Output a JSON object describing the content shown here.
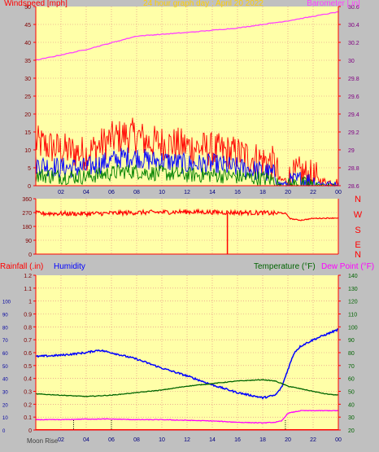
{
  "header": {
    "left_label": "Windspeed [mph]",
    "title": "24 hour graph day : April 20 2022",
    "right_label": "Barometer [.in]"
  },
  "colors": {
    "background": "#c0c0c0",
    "plot_bg": "#ffffa8",
    "grid": "#e08080",
    "frame": "#ff0000",
    "wind_gust": "#ff0000",
    "wind_avg": "#0000ff",
    "wind_low": "#008000",
    "barometer": "#ff40ff",
    "direction": "#ff0000",
    "rainfall": "#ff0000",
    "humidity": "#0000ff",
    "temperature": "#006400",
    "dew_point": "#ff00ff",
    "moon": "#000000"
  },
  "x_ticks": [
    "02",
    "04",
    "06",
    "08",
    "10",
    "12",
    "14",
    "16",
    "18",
    "20",
    "22",
    "00"
  ],
  "chart_data": [
    {
      "type": "line",
      "panel": "wind_barometer",
      "ylabel": "Windspeed [mph]",
      "y2label": "Barometer [.in]",
      "ylim": [
        0,
        50
      ],
      "y2lim": [
        28.6,
        30.6
      ],
      "y_ticks": [
        "0",
        "5",
        "10",
        "15",
        "20",
        "25",
        "30",
        "35",
        "40",
        "45",
        "50"
      ],
      "y2_ticks": [
        "28.6",
        "28.8",
        "29",
        "29.2",
        "29.4",
        "29.6",
        "29.8",
        "30",
        "30.2",
        "30.4",
        "30.6"
      ],
      "x_hours": [
        0,
        2,
        4,
        6,
        7,
        8,
        9,
        10,
        12,
        14,
        16,
        18,
        19,
        19.3,
        20,
        21,
        22,
        23,
        24
      ],
      "series": [
        {
          "key": "gust",
          "values": [
            12,
            10,
            9,
            13,
            14,
            14,
            12,
            12,
            11,
            10,
            9,
            7,
            6,
            1.5,
            1.5,
            3.5,
            2,
            1,
            1
          ]
        },
        {
          "key": "avg",
          "values": [
            6,
            5,
            5,
            7,
            8,
            8,
            7,
            7,
            6,
            6,
            5,
            4,
            3,
            0.5,
            0.5,
            1.5,
            1,
            0.5,
            0.5
          ]
        },
        {
          "key": "low",
          "values": [
            3,
            2.5,
            2.5,
            3.5,
            4,
            4,
            3.5,
            3.5,
            3,
            3,
            2.5,
            2,
            1.5,
            0,
            0,
            0.5,
            0,
            0,
            0
          ]
        },
        {
          "key": "barometer",
          "x_hours": [
            0,
            4,
            8,
            12,
            16,
            20,
            24
          ],
          "values": [
            30.0,
            30.12,
            30.27,
            30.31,
            30.36,
            30.44,
            30.54
          ]
        }
      ]
    },
    {
      "type": "line",
      "panel": "wind_direction",
      "y_ticks": [
        "0",
        "90",
        "180",
        "270",
        "360"
      ],
      "ylim": [
        0,
        360
      ],
      "compass": [
        "N",
        "W",
        "S",
        "E",
        "N"
      ],
      "series": [
        {
          "key": "direction",
          "x_hours": [
            0,
            4,
            8,
            12,
            16,
            18,
            19,
            19.8,
            20.2,
            21,
            22,
            24
          ],
          "values": [
            265,
            262,
            270,
            275,
            270,
            268,
            265,
            265,
            230,
            220,
            232,
            235
          ]
        }
      ],
      "spike": {
        "hour": 15.2,
        "value": 0
      }
    },
    {
      "type": "line",
      "panel": "rain_humidity_temp",
      "ylabel": "Rainfall (.in)",
      "ylabel2": "Humidity",
      "y2label": "Temperature (°F)",
      "y2label2": "Dew Point (°F)",
      "humidity_ticks": [
        "0",
        "10",
        "20",
        "30",
        "40",
        "50",
        "60",
        "70",
        "80",
        "90",
        "100"
      ],
      "rain_ticks": [
        "0",
        "0.1",
        "0.2",
        "0.3",
        "0.4",
        "0.5",
        "0.6",
        "0.7",
        "0.8",
        "0.9",
        "1",
        "1.1",
        "1.2"
      ],
      "temp_ticks": [
        "20",
        "30",
        "40",
        "50",
        "60",
        "70",
        "80",
        "90",
        "100",
        "110",
        "120",
        "130",
        "140"
      ],
      "ylim": [
        0,
        1.2
      ],
      "y2lim": [
        20,
        140
      ],
      "series": [
        {
          "key": "humidity",
          "x_hours": [
            0,
            2,
            4,
            5,
            6,
            8,
            10,
            12,
            14,
            16,
            18,
            19,
            19.5,
            20,
            20.5,
            21,
            22,
            23.5,
            24
          ],
          "values": [
            57,
            58,
            60,
            62,
            60,
            55,
            48,
            42,
            35,
            29,
            25,
            27,
            33,
            47,
            60,
            65,
            70,
            76,
            78
          ]
        },
        {
          "key": "temperature",
          "x_hours": [
            0,
            2,
            4,
            6,
            8,
            10,
            12,
            14,
            16,
            18,
            19,
            20,
            21,
            22,
            23,
            24
          ],
          "values": [
            48,
            47,
            46,
            47,
            49,
            51,
            54,
            56,
            58,
            59,
            58,
            54,
            52,
            50,
            48,
            47
          ]
        },
        {
          "key": "dew_point",
          "x_hours": [
            0,
            2,
            4,
            6,
            8,
            10,
            12,
            14,
            16,
            18,
            19,
            19.5,
            20,
            21,
            22,
            24
          ],
          "values": [
            28,
            28,
            28.5,
            28.5,
            28,
            28,
            27.5,
            27,
            26,
            25.5,
            26,
            27,
            33,
            35,
            35,
            35
          ]
        }
      ],
      "moon_label": "Moon Rise",
      "moon_hours": [
        3,
        6,
        19.8
      ]
    }
  ]
}
